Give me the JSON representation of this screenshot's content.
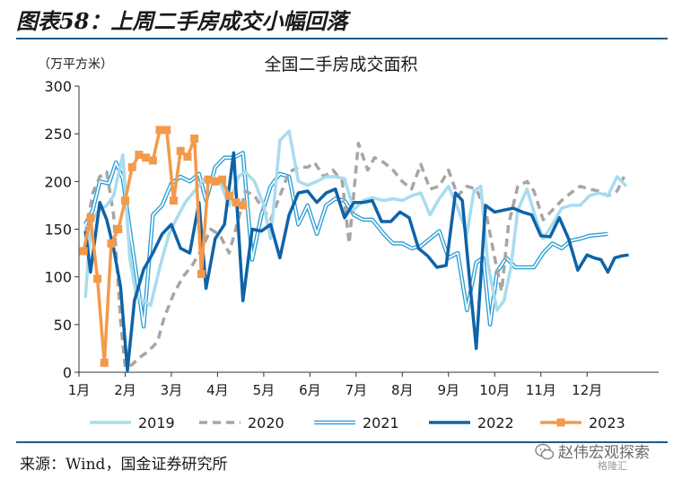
{
  "figure": {
    "title": "图表58：上周二手房成交小幅回落",
    "source": "来源：Wind，国金证券研究所",
    "watermark": "赵伟宏观探索",
    "watermark_sub": "格隆汇"
  },
  "colors": {
    "rule": "#1f5a8a",
    "s2019": "#a8dcef",
    "s2020": "#a6a6a6",
    "s2021": "#2a9fd4",
    "s2022": "#0f63a8",
    "s2023": "#f39a4a"
  },
  "chart_data": {
    "type": "line",
    "title": "全国二手房成交面积",
    "unit_label": "（万平方米）",
    "ylim": [
      0,
      300
    ],
    "yticks": [
      0,
      50,
      100,
      150,
      200,
      250,
      300
    ],
    "xlim": [
      1,
      13.55
    ],
    "xticks": [
      {
        "label": "1月",
        "x": 1
      },
      {
        "label": "2月",
        "x": 2
      },
      {
        "label": "3月",
        "x": 3
      },
      {
        "label": "4月",
        "x": 4
      },
      {
        "label": "5月",
        "x": 5
      },
      {
        "label": "6月",
        "x": 6
      },
      {
        "label": "7月",
        "x": 7
      },
      {
        "label": "8月",
        "x": 8
      },
      {
        "label": "9月",
        "x": 9
      },
      {
        "label": "10月",
        "x": 10
      },
      {
        "label": "11月",
        "x": 11
      },
      {
        "label": "12月",
        "x": 12
      }
    ],
    "grid": false,
    "legend_position": "bottom",
    "series": [
      {
        "name": "2019",
        "color": "#a8dcef",
        "style": "solid-thick",
        "points": [
          [
            1.14,
            78
          ],
          [
            1.25,
            155
          ],
          [
            1.4,
            168
          ],
          [
            1.6,
            175
          ],
          [
            1.75,
            185
          ],
          [
            1.95,
            228
          ],
          [
            2.1,
            120
          ],
          [
            2.25,
            78
          ],
          [
            2.4,
            75
          ],
          [
            2.55,
            70
          ],
          [
            2.75,
            110
          ],
          [
            2.95,
            145
          ],
          [
            3.1,
            160
          ],
          [
            3.3,
            178
          ],
          [
            3.5,
            190
          ],
          [
            3.7,
            202
          ],
          [
            3.9,
            205
          ],
          [
            4.05,
            200
          ],
          [
            4.25,
            175
          ],
          [
            4.45,
            205
          ],
          [
            4.6,
            210
          ],
          [
            4.8,
            200
          ],
          [
            5.0,
            175
          ],
          [
            5.15,
            140
          ],
          [
            5.35,
            243
          ],
          [
            5.55,
            253
          ],
          [
            5.75,
            200
          ],
          [
            5.95,
            196
          ],
          [
            6.15,
            200
          ],
          [
            6.35,
            205
          ],
          [
            6.55,
            205
          ],
          [
            6.75,
            203
          ],
          [
            6.95,
            170
          ],
          [
            7.15,
            180
          ],
          [
            7.35,
            183
          ],
          [
            7.6,
            180
          ],
          [
            7.8,
            182
          ],
          [
            8.0,
            180
          ],
          [
            8.2,
            185
          ],
          [
            8.4,
            188
          ],
          [
            8.6,
            165
          ],
          [
            8.8,
            182
          ],
          [
            9.0,
            195
          ],
          [
            9.2,
            172
          ],
          [
            9.4,
            145
          ],
          [
            9.55,
            190
          ],
          [
            9.7,
            195
          ],
          [
            9.85,
            115
          ],
          [
            10.05,
            65
          ],
          [
            10.2,
            75
          ],
          [
            10.35,
            110
          ],
          [
            10.5,
            170
          ],
          [
            10.7,
            192
          ],
          [
            10.9,
            160
          ],
          [
            11.05,
            140
          ],
          [
            11.25,
            155
          ],
          [
            11.45,
            172
          ],
          [
            11.65,
            175
          ],
          [
            11.85,
            175
          ],
          [
            12.05,
            185
          ],
          [
            12.25,
            188
          ],
          [
            12.45,
            185
          ],
          [
            12.65,
            205
          ],
          [
            12.85,
            195
          ]
        ]
      },
      {
        "name": "2020",
        "color": "#a6a6a6",
        "style": "dashed",
        "points": [
          [
            1.14,
            145
          ],
          [
            1.3,
            188
          ],
          [
            1.45,
            205
          ],
          [
            1.6,
            210
          ],
          [
            1.75,
            165
          ],
          [
            1.9,
            55
          ],
          [
            2.0,
            5
          ],
          [
            2.15,
            8
          ],
          [
            2.3,
            15
          ],
          [
            2.5,
            22
          ],
          [
            2.7,
            32
          ],
          [
            2.85,
            58
          ],
          [
            3.05,
            82
          ],
          [
            3.25,
            100
          ],
          [
            3.45,
            112
          ],
          [
            3.65,
            128
          ],
          [
            3.85,
            150
          ],
          [
            4.05,
            144
          ],
          [
            4.25,
            125
          ],
          [
            4.45,
            160
          ],
          [
            4.6,
            190
          ],
          [
            4.8,
            185
          ],
          [
            5.0,
            170
          ],
          [
            5.15,
            160
          ],
          [
            5.35,
            185
          ],
          [
            5.55,
            210
          ],
          [
            5.75,
            215
          ],
          [
            5.95,
            215
          ],
          [
            6.1,
            220
          ],
          [
            6.3,
            205
          ],
          [
            6.5,
            212
          ],
          [
            6.7,
            200
          ],
          [
            6.85,
            135
          ],
          [
            7.05,
            240
          ],
          [
            7.25,
            212
          ],
          [
            7.4,
            225
          ],
          [
            7.6,
            220
          ],
          [
            7.8,
            212
          ],
          [
            8.0,
            200
          ],
          [
            8.2,
            192
          ],
          [
            8.4,
            218
          ],
          [
            8.6,
            192
          ],
          [
            8.8,
            195
          ],
          [
            9.0,
            212
          ],
          [
            9.2,
            185
          ],
          [
            9.4,
            195
          ],
          [
            9.6,
            192
          ],
          [
            9.8,
            170
          ],
          [
            10.0,
            120
          ],
          [
            10.15,
            85
          ],
          [
            10.3,
            155
          ],
          [
            10.5,
            195
          ],
          [
            10.7,
            200
          ],
          [
            10.85,
            190
          ],
          [
            11.05,
            160
          ],
          [
            11.25,
            170
          ],
          [
            11.45,
            180
          ],
          [
            11.65,
            188
          ],
          [
            11.85,
            195
          ],
          [
            12.05,
            192
          ],
          [
            12.25,
            190
          ],
          [
            12.45,
            185
          ],
          [
            12.65,
            190
          ],
          [
            12.8,
            205
          ]
        ]
      },
      {
        "name": "2021",
        "color": "#2a9fd4",
        "style": "double",
        "points": [
          [
            1.14,
            155
          ],
          [
            1.3,
            170
          ],
          [
            1.45,
            200
          ],
          [
            1.65,
            198
          ],
          [
            1.8,
            220
          ],
          [
            1.95,
            203
          ],
          [
            2.1,
            150
          ],
          [
            2.25,
            100
          ],
          [
            2.4,
            48
          ],
          [
            2.6,
            165
          ],
          [
            2.8,
            175
          ],
          [
            3.0,
            198
          ],
          [
            3.2,
            205
          ],
          [
            3.4,
            200
          ],
          [
            3.6,
            208
          ],
          [
            3.75,
            180
          ],
          [
            3.95,
            215
          ],
          [
            4.15,
            225
          ],
          [
            4.35,
            225
          ],
          [
            4.55,
            230
          ],
          [
            4.75,
            118
          ],
          [
            4.95,
            165
          ],
          [
            5.15,
            195
          ],
          [
            5.35,
            208
          ],
          [
            5.55,
            205
          ],
          [
            5.75,
            155
          ],
          [
            5.95,
            175
          ],
          [
            6.15,
            145
          ],
          [
            6.35,
            175
          ],
          [
            6.55,
            182
          ],
          [
            6.75,
            180
          ],
          [
            6.95,
            165
          ],
          [
            7.15,
            160
          ],
          [
            7.35,
            160
          ],
          [
            7.6,
            145
          ],
          [
            7.8,
            135
          ],
          [
            8.0,
            135
          ],
          [
            8.2,
            130
          ],
          [
            8.4,
            132
          ],
          [
            8.6,
            140
          ],
          [
            8.8,
            148
          ],
          [
            9.0,
            120
          ],
          [
            9.2,
            125
          ],
          [
            9.4,
            65
          ],
          [
            9.6,
            115
          ],
          [
            9.75,
            120
          ],
          [
            9.9,
            50
          ],
          [
            10.05,
            105
          ],
          [
            10.25,
            120
          ],
          [
            10.45,
            110
          ],
          [
            10.65,
            110
          ],
          [
            10.85,
            110
          ],
          [
            11.05,
            125
          ],
          [
            11.25,
            135
          ],
          [
            11.45,
            130
          ],
          [
            11.65,
            138
          ],
          [
            11.85,
            140
          ],
          [
            12.05,
            143
          ],
          [
            12.25,
            144
          ],
          [
            12.45,
            145
          ]
        ]
      },
      {
        "name": "2022",
        "color": "#0f63a8",
        "style": "solid-thick",
        "points": [
          [
            1.14,
            148
          ],
          [
            1.25,
            105
          ],
          [
            1.45,
            178
          ],
          [
            1.6,
            160
          ],
          [
            1.75,
            130
          ],
          [
            1.9,
            90
          ],
          [
            2.05,
            2
          ],
          [
            2.2,
            75
          ],
          [
            2.4,
            108
          ],
          [
            2.6,
            125
          ],
          [
            2.8,
            145
          ],
          [
            3.0,
            155
          ],
          [
            3.2,
            130
          ],
          [
            3.4,
            125
          ],
          [
            3.6,
            178
          ],
          [
            3.75,
            88
          ],
          [
            3.95,
            140
          ],
          [
            4.15,
            155
          ],
          [
            4.35,
            230
          ],
          [
            4.55,
            75
          ],
          [
            4.75,
            150
          ],
          [
            4.95,
            148
          ],
          [
            5.15,
            155
          ],
          [
            5.35,
            120
          ],
          [
            5.55,
            165
          ],
          [
            5.75,
            188
          ],
          [
            5.95,
            190
          ],
          [
            6.15,
            178
          ],
          [
            6.35,
            188
          ],
          [
            6.55,
            192
          ],
          [
            6.75,
            162
          ],
          [
            6.95,
            178
          ],
          [
            7.15,
            178
          ],
          [
            7.35,
            180
          ],
          [
            7.55,
            158
          ],
          [
            7.75,
            158
          ],
          [
            7.95,
            168
          ],
          [
            8.15,
            162
          ],
          [
            8.35,
            130
          ],
          [
            8.55,
            122
          ],
          [
            8.75,
            110
          ],
          [
            8.95,
            112
          ],
          [
            9.15,
            188
          ],
          [
            9.3,
            180
          ],
          [
            9.45,
            100
          ],
          [
            9.6,
            25
          ],
          [
            9.8,
            175
          ],
          [
            10.0,
            168
          ],
          [
            10.2,
            170
          ],
          [
            10.4,
            172
          ],
          [
            10.6,
            168
          ],
          [
            10.8,
            165
          ],
          [
            11.0,
            143
          ],
          [
            11.2,
            142
          ],
          [
            11.4,
            162
          ],
          [
            11.6,
            140
          ],
          [
            11.8,
            107
          ],
          [
            12.0,
            123
          ],
          [
            12.15,
            120
          ],
          [
            12.3,
            118
          ],
          [
            12.45,
            105
          ],
          [
            12.6,
            120
          ],
          [
            12.75,
            122
          ],
          [
            12.9,
            123
          ]
        ]
      },
      {
        "name": "2023",
        "color": "#f39a4a",
        "style": "solid-markers",
        "points": [
          [
            1.1,
            127
          ],
          [
            1.25,
            162
          ],
          [
            1.4,
            98
          ],
          [
            1.55,
            10
          ],
          [
            1.7,
            135
          ],
          [
            1.85,
            150
          ],
          [
            2.0,
            180
          ],
          [
            2.15,
            215
          ],
          [
            2.3,
            228
          ],
          [
            2.45,
            225
          ],
          [
            2.6,
            222
          ],
          [
            2.75,
            254
          ],
          [
            2.9,
            254
          ],
          [
            3.05,
            180
          ],
          [
            3.2,
            232
          ],
          [
            3.35,
            226
          ],
          [
            3.5,
            245
          ],
          [
            3.65,
            103
          ],
          [
            3.8,
            202
          ],
          [
            3.95,
            200
          ],
          [
            4.1,
            202
          ],
          [
            4.25,
            185
          ],
          [
            4.4,
            178
          ],
          [
            4.55,
            175
          ]
        ]
      }
    ]
  }
}
